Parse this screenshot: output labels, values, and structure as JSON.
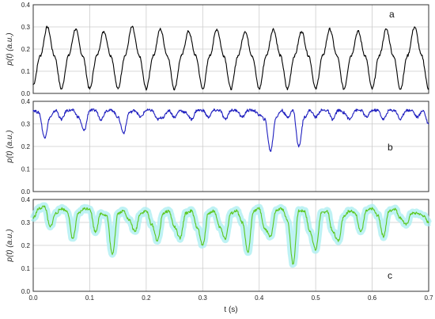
{
  "chart_data": [
    {
      "type": "line",
      "panel_label": "a",
      "ylabel": "p(t) (a.u.)",
      "xlabel": "",
      "xlim": [
        0.0,
        0.7
      ],
      "ylim": [
        0.0,
        0.4
      ],
      "yticks": [
        "0.0",
        "0.1",
        "0.2",
        "0.3",
        "0.4"
      ],
      "xticks": [],
      "grid": true,
      "series": [
        {
          "color": "#000000",
          "x": [
            0.0,
            0.0125,
            0.025,
            0.0375,
            0.05,
            0.0625,
            0.075,
            0.0875,
            0.1,
            0.1125,
            0.125,
            0.1375,
            0.15,
            0.1625,
            0.175,
            0.1875,
            0.2,
            0.2125,
            0.225,
            0.2375,
            0.25,
            0.2625,
            0.275,
            0.2875,
            0.3,
            0.3125,
            0.325,
            0.3375,
            0.35,
            0.3625,
            0.375,
            0.3875,
            0.4,
            0.4125,
            0.425,
            0.4375,
            0.45,
            0.4625,
            0.475,
            0.4875,
            0.5,
            0.5125,
            0.525,
            0.5375,
            0.55,
            0.5625,
            0.575,
            0.5875,
            0.6,
            0.6125,
            0.625,
            0.6375,
            0.65,
            0.6625,
            0.675,
            0.6875,
            0.7
          ],
          "y": [
            0.04,
            0.17,
            0.3,
            0.17,
            0.02,
            0.17,
            0.29,
            0.17,
            0.02,
            0.17,
            0.28,
            0.17,
            0.02,
            0.17,
            0.3,
            0.17,
            0.02,
            0.17,
            0.29,
            0.17,
            0.02,
            0.17,
            0.28,
            0.17,
            0.02,
            0.17,
            0.29,
            0.17,
            0.02,
            0.17,
            0.28,
            0.17,
            0.02,
            0.17,
            0.29,
            0.17,
            0.02,
            0.17,
            0.28,
            0.17,
            0.02,
            0.17,
            0.29,
            0.17,
            0.02,
            0.17,
            0.28,
            0.17,
            0.02,
            0.17,
            0.29,
            0.17,
            0.02,
            0.17,
            0.3,
            0.17,
            0.02
          ]
        }
      ]
    },
    {
      "type": "line",
      "panel_label": "b",
      "ylabel": "p(t) (a.u.)",
      "xlabel": "",
      "xlim": [
        0.0,
        0.7
      ],
      "ylim": [
        0.0,
        0.4
      ],
      "yticks": [
        "0.0",
        "0.1",
        "0.2",
        "0.3",
        "0.4"
      ],
      "xticks": [],
      "grid": true,
      "series": [
        {
          "color": "#1f1fbf",
          "x": [
            0.0,
            0.01,
            0.02,
            0.03,
            0.04,
            0.05,
            0.06,
            0.07,
            0.08,
            0.09,
            0.1,
            0.11,
            0.12,
            0.13,
            0.14,
            0.15,
            0.16,
            0.17,
            0.18,
            0.19,
            0.2,
            0.21,
            0.22,
            0.23,
            0.24,
            0.25,
            0.26,
            0.27,
            0.28,
            0.29,
            0.3,
            0.31,
            0.32,
            0.33,
            0.34,
            0.35,
            0.36,
            0.37,
            0.38,
            0.39,
            0.4,
            0.41,
            0.42,
            0.43,
            0.44,
            0.45,
            0.46,
            0.47,
            0.48,
            0.49,
            0.5,
            0.51,
            0.52,
            0.53,
            0.54,
            0.55,
            0.56,
            0.57,
            0.58,
            0.59,
            0.6,
            0.61,
            0.62,
            0.63,
            0.64,
            0.65,
            0.66,
            0.67,
            0.68,
            0.69,
            0.7
          ],
          "y": [
            0.36,
            0.35,
            0.24,
            0.33,
            0.36,
            0.32,
            0.36,
            0.36,
            0.33,
            0.27,
            0.36,
            0.36,
            0.32,
            0.36,
            0.36,
            0.33,
            0.26,
            0.35,
            0.36,
            0.33,
            0.36,
            0.36,
            0.32,
            0.33,
            0.36,
            0.33,
            0.36,
            0.35,
            0.32,
            0.36,
            0.36,
            0.33,
            0.36,
            0.36,
            0.32,
            0.36,
            0.36,
            0.33,
            0.36,
            0.36,
            0.34,
            0.32,
            0.18,
            0.33,
            0.36,
            0.33,
            0.36,
            0.2,
            0.33,
            0.36,
            0.33,
            0.36,
            0.36,
            0.32,
            0.36,
            0.35,
            0.32,
            0.36,
            0.36,
            0.33,
            0.36,
            0.36,
            0.32,
            0.36,
            0.36,
            0.32,
            0.36,
            0.36,
            0.33,
            0.36,
            0.3
          ]
        }
      ]
    },
    {
      "type": "line",
      "panel_label": "c",
      "ylabel": "p(t) (a.u.)",
      "xlabel": "t (s)",
      "xlim": [
        0.0,
        0.7
      ],
      "ylim": [
        0.0,
        0.4
      ],
      "yticks": [
        "0.0",
        "0.1",
        "0.2",
        "0.3",
        "0.4"
      ],
      "xticks": [
        "0.0",
        "0.1",
        "0.2",
        "0.3",
        "0.4",
        "0.5",
        "0.6",
        "0.7"
      ],
      "grid": true,
      "series": [
        {
          "color": "#5cc81e",
          "band_color": "#a8eef0",
          "x": [
            0.0,
            0.01,
            0.02,
            0.03,
            0.04,
            0.05,
            0.06,
            0.07,
            0.08,
            0.09,
            0.1,
            0.11,
            0.12,
            0.13,
            0.14,
            0.15,
            0.16,
            0.17,
            0.18,
            0.19,
            0.2,
            0.21,
            0.22,
            0.23,
            0.24,
            0.25,
            0.26,
            0.27,
            0.28,
            0.29,
            0.3,
            0.31,
            0.32,
            0.33,
            0.34,
            0.35,
            0.36,
            0.37,
            0.38,
            0.39,
            0.4,
            0.41,
            0.42,
            0.43,
            0.44,
            0.45,
            0.46,
            0.47,
            0.48,
            0.49,
            0.5,
            0.51,
            0.52,
            0.53,
            0.54,
            0.55,
            0.56,
            0.57,
            0.58,
            0.59,
            0.6,
            0.61,
            0.62,
            0.63,
            0.64,
            0.65,
            0.66,
            0.67,
            0.68,
            0.69,
            0.7
          ],
          "y": [
            0.32,
            0.36,
            0.37,
            0.28,
            0.34,
            0.36,
            0.35,
            0.23,
            0.34,
            0.36,
            0.36,
            0.26,
            0.34,
            0.33,
            0.16,
            0.34,
            0.35,
            0.31,
            0.26,
            0.34,
            0.35,
            0.29,
            0.22,
            0.34,
            0.35,
            0.28,
            0.23,
            0.34,
            0.35,
            0.28,
            0.2,
            0.34,
            0.35,
            0.28,
            0.23,
            0.34,
            0.35,
            0.3,
            0.17,
            0.35,
            0.36,
            0.27,
            0.24,
            0.35,
            0.36,
            0.31,
            0.12,
            0.35,
            0.35,
            0.26,
            0.18,
            0.34,
            0.35,
            0.26,
            0.22,
            0.33,
            0.35,
            0.34,
            0.26,
            0.35,
            0.36,
            0.33,
            0.24,
            0.35,
            0.36,
            0.32,
            0.29,
            0.34,
            0.34,
            0.33,
            0.3
          ]
        }
      ]
    }
  ]
}
